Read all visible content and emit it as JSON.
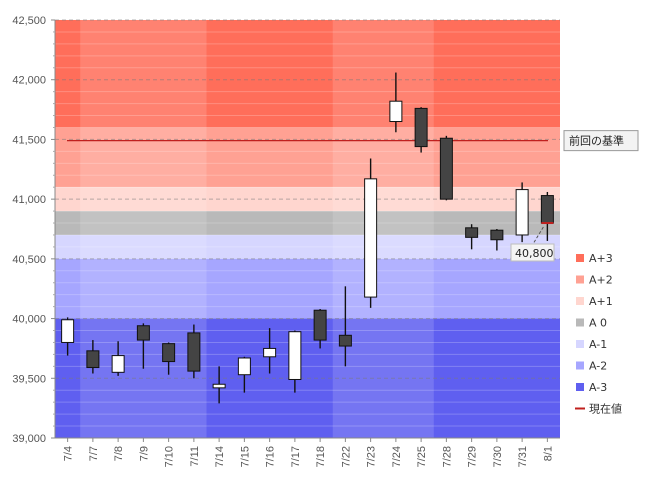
{
  "chart_data": {
    "type": "candlestick",
    "categories": [
      "7/4",
      "7/7",
      "7/8",
      "7/9",
      "7/10",
      "7/11",
      "7/14",
      "7/15",
      "7/16",
      "7/17",
      "7/18",
      "7/22",
      "7/23",
      "7/24",
      "7/25",
      "7/28",
      "7/29",
      "7/30",
      "7/31",
      "8/1"
    ],
    "candles": [
      {
        "date": "7/4",
        "open": 39800,
        "high": 40010,
        "low": 39690,
        "close": 39990
      },
      {
        "date": "7/7",
        "open": 39730,
        "high": 39820,
        "low": 39540,
        "close": 39590
      },
      {
        "date": "7/8",
        "open": 39550,
        "high": 39810,
        "low": 39520,
        "close": 39690
      },
      {
        "date": "7/9",
        "open": 39940,
        "high": 39960,
        "low": 39580,
        "close": 39820
      },
      {
        "date": "7/10",
        "open": 39790,
        "high": 39800,
        "low": 39530,
        "close": 39640
      },
      {
        "date": "7/11",
        "open": 39880,
        "high": 39950,
        "low": 39500,
        "close": 39560
      },
      {
        "date": "7/14",
        "open": 39420,
        "high": 39600,
        "low": 39290,
        "close": 39450
      },
      {
        "date": "7/15",
        "open": 39530,
        "high": 39680,
        "low": 39380,
        "close": 39670
      },
      {
        "date": "7/16",
        "open": 39680,
        "high": 39920,
        "low": 39540,
        "close": 39750
      },
      {
        "date": "7/17",
        "open": 39490,
        "high": 39900,
        "low": 39380,
        "close": 39890
      },
      {
        "date": "7/18",
        "open": 40070,
        "high": 40080,
        "low": 39750,
        "close": 39820
      },
      {
        "date": "7/22",
        "open": 39860,
        "high": 40270,
        "low": 39600,
        "close": 39770
      },
      {
        "date": "7/23",
        "open": 40180,
        "high": 41340,
        "low": 40090,
        "close": 41170
      },
      {
        "date": "7/24",
        "open": 41650,
        "high": 42060,
        "low": 41560,
        "close": 41820
      },
      {
        "date": "7/25",
        "open": 41760,
        "high": 41770,
        "low": 41390,
        "close": 41440
      },
      {
        "date": "7/28",
        "open": 41510,
        "high": 41530,
        "low": 40990,
        "close": 41000
      },
      {
        "date": "7/29",
        "open": 40760,
        "high": 40790,
        "low": 40580,
        "close": 40680
      },
      {
        "date": "7/30",
        "open": 40740,
        "high": 40750,
        "low": 40570,
        "close": 40660
      },
      {
        "date": "7/31",
        "open": 40700,
        "high": 41140,
        "low": 40640,
        "close": 41080
      },
      {
        "date": "8/1",
        "open": 41030,
        "high": 41060,
        "low": 40650,
        "close": 40800
      }
    ],
    "ylim": [
      39000,
      42500
    ],
    "yticks": [
      39000,
      39500,
      40000,
      40500,
      41000,
      41500,
      42000,
      42500
    ],
    "ytick_labels": [
      "39,000",
      "39,500",
      "40,000",
      "40,500",
      "41,000",
      "41,500",
      "42,000",
      "42,500"
    ],
    "bands": [
      {
        "name": "A+3",
        "from": 41600,
        "to": 42500,
        "color": "#ff6e5a"
      },
      {
        "name": "A+2",
        "from": 41100,
        "to": 41600,
        "color": "#ffa193"
      },
      {
        "name": "A+1",
        "from": 40900,
        "to": 41100,
        "color": "#ffd6cf"
      },
      {
        "name": "A 0",
        "from": 40700,
        "to": 40900,
        "color": "#b9b9b9"
      },
      {
        "name": "A-1",
        "from": 40500,
        "to": 40700,
        "color": "#d6d6ff"
      },
      {
        "name": "A-2",
        "from": 40000,
        "to": 40500,
        "color": "#a6a6ff"
      },
      {
        "name": "A-3",
        "from": 39000,
        "to": 40000,
        "color": "#5f5ff0"
      }
    ],
    "reference_line": {
      "value": 41490,
      "label": "前回の基準",
      "color": "#c0201e"
    },
    "current_value": {
      "value": 40800,
      "label": "40,800"
    },
    "legend": [
      {
        "label": "A+3",
        "color": "#ff6e5a",
        "kind": "box"
      },
      {
        "label": "A+2",
        "color": "#ffa193",
        "kind": "box"
      },
      {
        "label": "A+1",
        "color": "#ffd6cf",
        "kind": "box"
      },
      {
        "label": "A 0",
        "color": "#b9b9b9",
        "kind": "box"
      },
      {
        "label": "A-1",
        "color": "#d6d6ff",
        "kind": "box"
      },
      {
        "label": "A-2",
        "color": "#a6a6ff",
        "kind": "box"
      },
      {
        "label": "A-3",
        "color": "#5f5ff0",
        "kind": "box"
      },
      {
        "label": "現在値",
        "color": "#c0201e",
        "kind": "line"
      }
    ],
    "up_color": "#ffffff",
    "down_color": "#444444",
    "legend_position": "right",
    "grid": true
  }
}
